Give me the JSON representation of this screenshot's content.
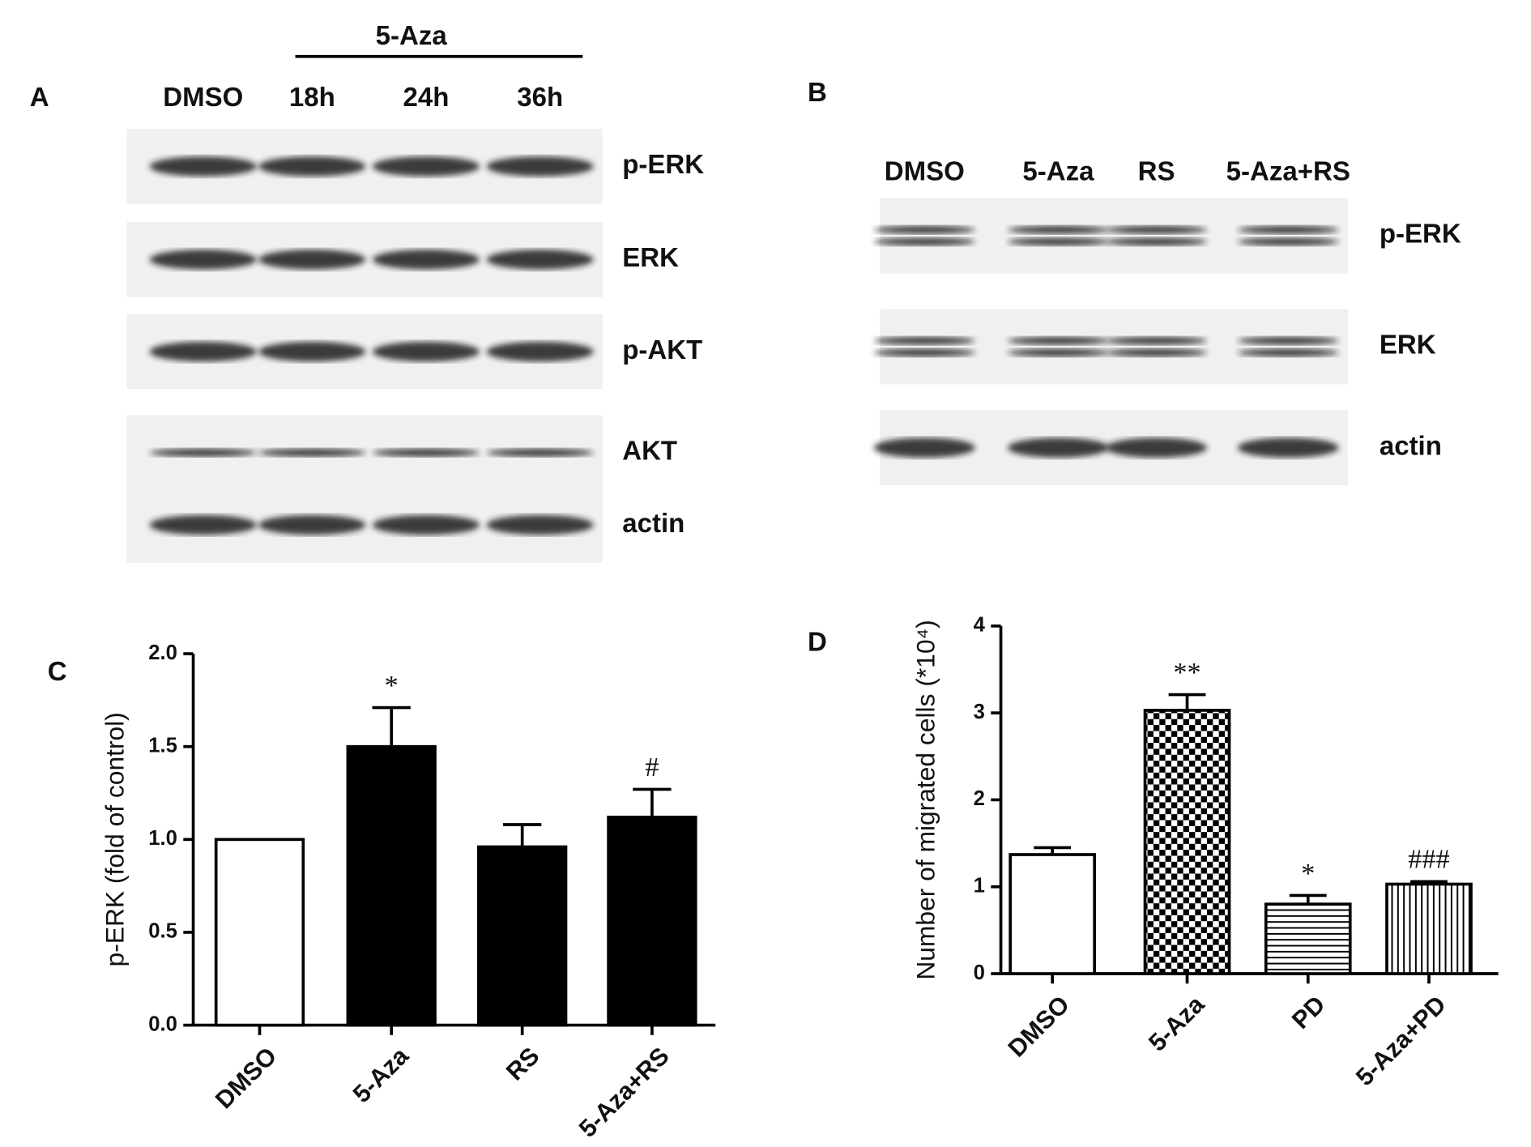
{
  "panel_a": {
    "letter": "A",
    "treatment": "5-Aza",
    "lanes": [
      "DMSO",
      "18h",
      "24h",
      "36h"
    ],
    "rows": [
      "p-ERK",
      "ERK",
      "p-AKT",
      "AKT",
      "actin"
    ]
  },
  "panel_b": {
    "letter": "B",
    "lanes": [
      "DMSO",
      "5-Aza",
      "RS",
      "5-Aza+RS"
    ],
    "rows": [
      "p-ERK",
      "ERK",
      "actin"
    ]
  },
  "chart_data": [
    {
      "type": "bar",
      "letter": "C",
      "y_label": "p-ERK (fold of control)",
      "categories": [
        "DMSO",
        "5-Aza",
        "RS",
        "5-Aza+RS"
      ],
      "values": [
        1.0,
        1.5,
        0.96,
        1.12
      ],
      "errors": [
        0,
        0.21,
        0.12,
        0.15
      ],
      "annotations": [
        null,
        "*",
        null,
        "#"
      ],
      "colors": [
        "#ffffff",
        "#000000",
        "#000000",
        "#000000"
      ],
      "ylim": [
        0,
        2
      ],
      "yticks": [
        {
          "value": 0,
          "label": "0.0"
        },
        0.5,
        {
          "value": 1,
          "label": "1.0"
        },
        1.5,
        {
          "value": 2,
          "label": "2.0"
        }
      ]
    },
    {
      "type": "bar",
      "letter": "D",
      "y_label": "Number of migrated cells  (*10⁴)",
      "categories": [
        "DMSO",
        "5-Aza",
        "PD",
        "5-Aza+PD"
      ],
      "values": [
        1.37,
        3.03,
        0.8,
        1.03
      ],
      "errors": [
        0.08,
        0.18,
        0.1,
        0.03
      ],
      "annotations": [
        null,
        "**",
        "*",
        "###"
      ],
      "patterns": [
        "none",
        "checker",
        "hlines",
        "vlines"
      ],
      "ylim": [
        0,
        4
      ],
      "yticks": [
        0,
        1,
        2,
        3,
        4
      ]
    }
  ]
}
